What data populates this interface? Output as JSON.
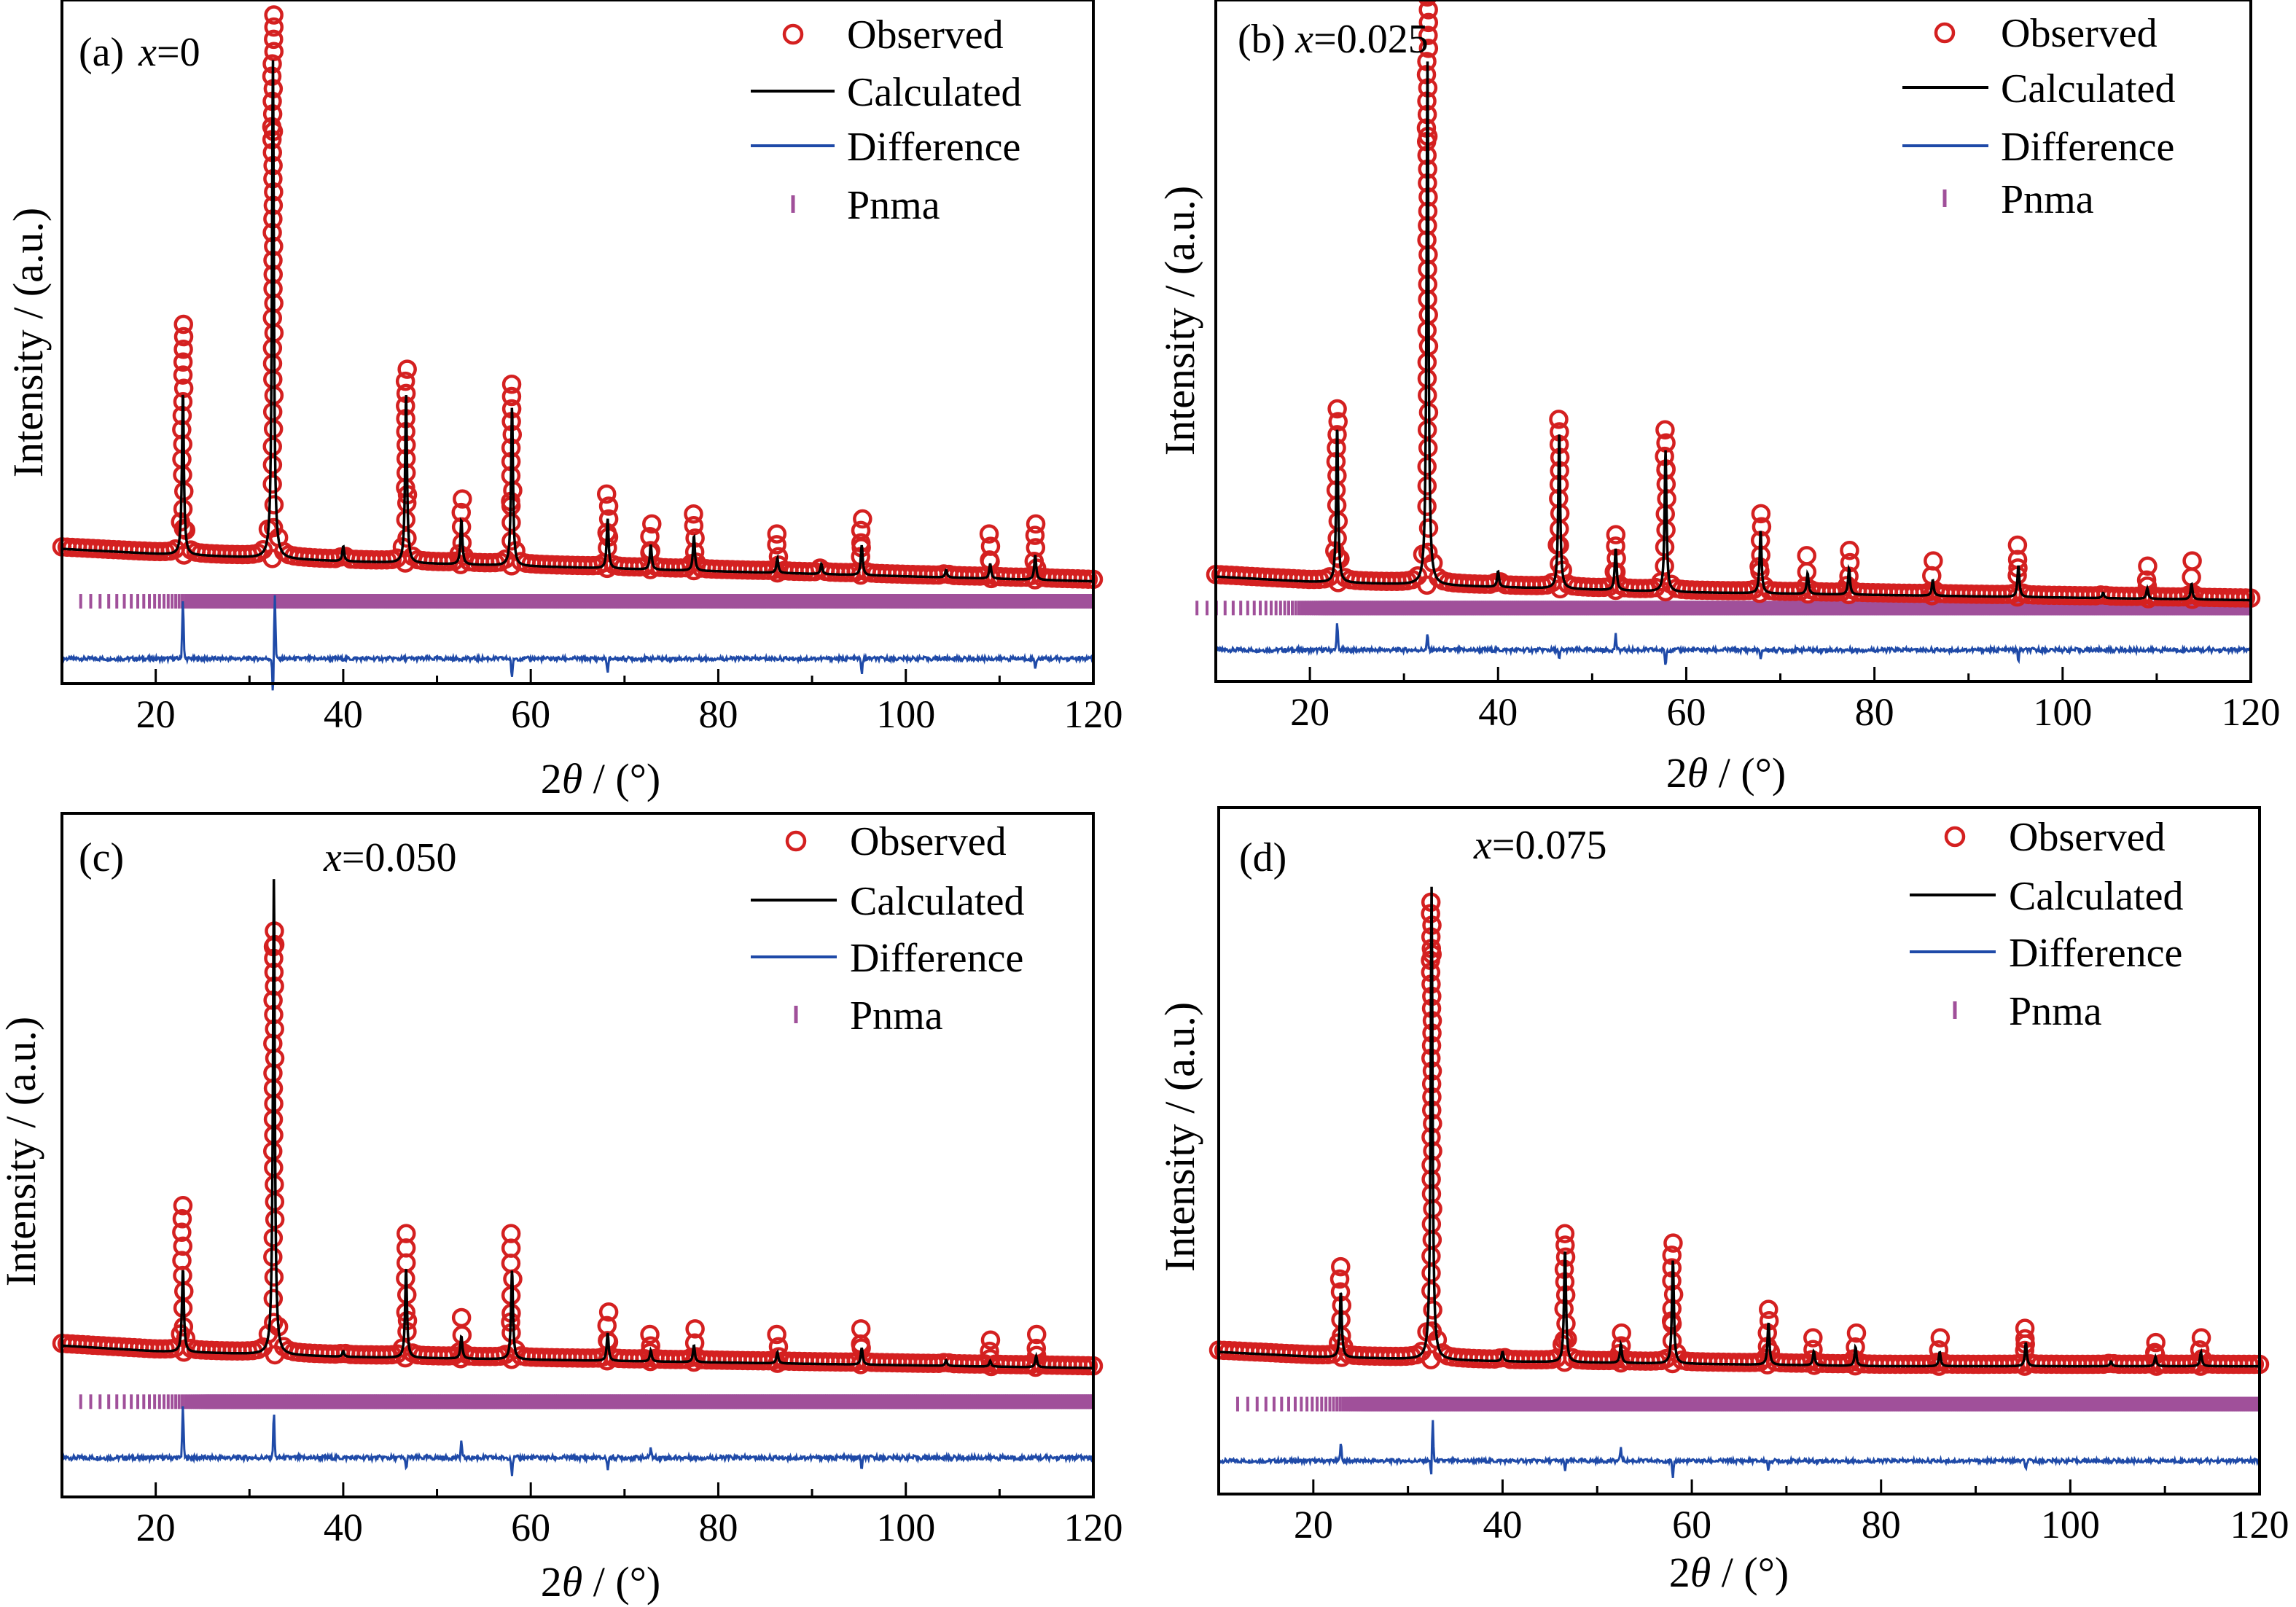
{
  "colors": {
    "observed": "#d42020",
    "calculated": "#000000",
    "difference": "#1f4aa8",
    "bragg": "#a0509a"
  },
  "legend": {
    "observed": "Observed",
    "calculated": "Calculated",
    "difference": "Difference",
    "bragg": "Pnma"
  },
  "axis": {
    "x_title_prefix": "2",
    "x_title_symbol": "θ",
    "x_title_suffix": " / (°)",
    "y_title": "Intensity / (a.u.)"
  },
  "chart_data": [
    {
      "type": "line",
      "panel": "(a)",
      "composition_var": "x",
      "composition_value": "=0",
      "xlim": [
        10,
        120
      ],
      "xticks": [
        20,
        40,
        60,
        80,
        100,
        120
      ],
      "y_normalized": true,
      "ylim": [
        -0.27,
        1.1
      ],
      "background": [
        [
          10,
          0.0
        ],
        [
          20,
          -0.01
        ],
        [
          40,
          -0.025
        ],
        [
          60,
          -0.035
        ],
        [
          80,
          -0.045
        ],
        [
          100,
          -0.055
        ],
        [
          120,
          -0.065
        ]
      ],
      "peaks": [
        [
          22.9,
          0.33
        ],
        [
          32.5,
          1.0
        ],
        [
          40.0,
          0.03
        ],
        [
          46.7,
          0.34
        ],
        [
          52.6,
          0.09
        ],
        [
          58.0,
          0.32
        ],
        [
          68.2,
          0.1
        ],
        [
          72.8,
          0.05
        ],
        [
          77.4,
          0.07
        ],
        [
          86.3,
          0.03
        ],
        [
          91.0,
          0.02
        ],
        [
          95.3,
          0.06
        ],
        [
          104.3,
          0.015
        ],
        [
          109.0,
          0.03
        ],
        [
          113.8,
          0.05
        ]
      ],
      "obs_top": [
        [
          22.9,
          0.45
        ],
        [
          32.5,
          1.07
        ],
        [
          46.7,
          0.36
        ],
        [
          52.6,
          0.1
        ],
        [
          58.0,
          0.33
        ],
        [
          68.2,
          0.11
        ],
        [
          72.8,
          0.05
        ],
        [
          77.4,
          0.07
        ],
        [
          86.3,
          0.03
        ],
        [
          95.3,
          0.06
        ],
        [
          109.0,
          0.03
        ],
        [
          113.8,
          0.05
        ]
      ],
      "difference_baseline": -0.22,
      "difference_spikes": [
        [
          22.9,
          0.12
        ],
        [
          32.5,
          -0.07
        ],
        [
          32.7,
          0.13
        ],
        [
          58.0,
          -0.04
        ],
        [
          68.2,
          -0.03
        ],
        [
          95.3,
          -0.03
        ],
        [
          113.8,
          -0.02
        ]
      ],
      "bragg_y": -0.105,
      "bragg_start": 12.0
    },
    {
      "type": "line",
      "panel": "(b)",
      "composition_var": "x",
      "composition_value": "=0.025",
      "xlim": [
        10,
        120
      ],
      "xticks": [
        20,
        40,
        60,
        80,
        100,
        120
      ],
      "y_normalized": true,
      "ylim": [
        -0.2,
        1.1
      ],
      "background": [
        [
          10,
          0.0
        ],
        [
          20,
          -0.01
        ],
        [
          40,
          -0.02
        ],
        [
          60,
          -0.03
        ],
        [
          80,
          -0.035
        ],
        [
          100,
          -0.04
        ],
        [
          120,
          -0.045
        ]
      ],
      "peaks": [
        [
          22.9,
          0.3
        ],
        [
          32.5,
          1.0
        ],
        [
          40.0,
          0.03
        ],
        [
          46.5,
          0.3
        ],
        [
          52.5,
          0.08
        ],
        [
          57.8,
          0.27
        ],
        [
          67.9,
          0.12
        ],
        [
          72.9,
          0.04
        ],
        [
          77.3,
          0.05
        ],
        [
          86.2,
          0.03
        ],
        [
          95.3,
          0.06
        ],
        [
          104.3,
          0.01
        ],
        [
          109.0,
          0.02
        ],
        [
          113.7,
          0.03
        ]
      ],
      "obs_top": [
        [
          22.9,
          0.32
        ],
        [
          32.5,
          1.13
        ],
        [
          46.5,
          0.3
        ],
        [
          52.5,
          0.08
        ],
        [
          57.8,
          0.28
        ],
        [
          67.9,
          0.12
        ],
        [
          72.9,
          0.04
        ],
        [
          77.3,
          0.05
        ],
        [
          86.2,
          0.03
        ],
        [
          95.3,
          0.06
        ],
        [
          109.0,
          0.02
        ],
        [
          113.7,
          0.03
        ]
      ],
      "difference_baseline": -0.14,
      "difference_spikes": [
        [
          22.9,
          0.05
        ],
        [
          32.5,
          0.03
        ],
        [
          46.5,
          -0.02
        ],
        [
          52.5,
          0.03
        ],
        [
          57.8,
          -0.03
        ],
        [
          67.9,
          -0.02
        ],
        [
          95.3,
          -0.02
        ]
      ],
      "bragg_y": -0.06,
      "bragg_start": 8.0
    },
    {
      "type": "line",
      "panel": "(c)",
      "composition_var": "x",
      "composition_value": "=0.050",
      "xlim": [
        10,
        120
      ],
      "xticks": [
        20,
        40,
        60,
        80,
        100,
        120
      ],
      "y_normalized": true,
      "ylim": [
        -0.27,
        0.95
      ],
      "background": [
        [
          10,
          0.0
        ],
        [
          20,
          -0.01
        ],
        [
          40,
          -0.02
        ],
        [
          60,
          -0.025
        ],
        [
          80,
          -0.03
        ],
        [
          100,
          -0.035
        ],
        [
          120,
          -0.04
        ]
      ],
      "peaks": [
        [
          22.9,
          0.15
        ],
        [
          32.6,
          0.85
        ],
        [
          40.0,
          0.01
        ],
        [
          46.7,
          0.16
        ],
        [
          52.6,
          0.04
        ],
        [
          58.0,
          0.16
        ],
        [
          68.2,
          0.05
        ],
        [
          72.8,
          0.02
        ],
        [
          77.4,
          0.03
        ],
        [
          86.3,
          0.02
        ],
        [
          95.3,
          0.03
        ],
        [
          104.3,
          0.01
        ],
        [
          109.0,
          0.01
        ],
        [
          113.9,
          0.02
        ]
      ],
      "obs_top": [
        [
          22.9,
          0.25
        ],
        [
          32.6,
          0.74
        ],
        [
          46.7,
          0.2
        ],
        [
          52.6,
          0.05
        ],
        [
          58.0,
          0.2
        ],
        [
          68.2,
          0.06
        ],
        [
          72.8,
          0.02
        ],
        [
          77.4,
          0.03
        ],
        [
          86.3,
          0.02
        ],
        [
          95.3,
          0.03
        ],
        [
          109.0,
          0.01
        ],
        [
          113.9,
          0.02
        ]
      ],
      "difference_baseline": -0.2,
      "difference_spikes": [
        [
          22.9,
          0.09
        ],
        [
          32.6,
          0.08
        ],
        [
          46.7,
          -0.02
        ],
        [
          52.6,
          0.03
        ],
        [
          58.0,
          -0.03
        ],
        [
          68.2,
          -0.02
        ],
        [
          72.8,
          0.02
        ],
        [
          95.3,
          -0.02
        ]
      ],
      "bragg_y": -0.1,
      "bragg_start": 12.0
    },
    {
      "type": "line",
      "panel": "(d)",
      "composition_var": "x",
      "composition_value": "=0.075",
      "xlim": [
        10,
        120
      ],
      "xticks": [
        20,
        40,
        60,
        80,
        100,
        120
      ],
      "y_normalized": true,
      "ylim": [
        -0.3,
        1.15
      ],
      "background": [
        [
          10,
          0.0
        ],
        [
          20,
          -0.01
        ],
        [
          40,
          -0.02
        ],
        [
          60,
          -0.025
        ],
        [
          80,
          -0.03
        ],
        [
          100,
          -0.03
        ],
        [
          120,
          -0.03
        ]
      ],
      "peaks": [
        [
          22.9,
          0.14
        ],
        [
          32.5,
          1.0
        ],
        [
          40.0,
          0.02
        ],
        [
          46.6,
          0.24
        ],
        [
          52.5,
          0.04
        ],
        [
          58.0,
          0.22
        ],
        [
          68.1,
          0.09
        ],
        [
          72.9,
          0.03
        ],
        [
          77.3,
          0.04
        ],
        [
          86.2,
          0.03
        ],
        [
          95.3,
          0.05
        ],
        [
          104.3,
          0.01
        ],
        [
          109.0,
          0.02
        ],
        [
          113.8,
          0.03
        ]
      ],
      "obs_top": [
        [
          22.9,
          0.18
        ],
        [
          32.5,
          0.95
        ],
        [
          46.6,
          0.25
        ],
        [
          52.5,
          0.04
        ],
        [
          58.0,
          0.23
        ],
        [
          68.1,
          0.09
        ],
        [
          72.9,
          0.03
        ],
        [
          77.3,
          0.04
        ],
        [
          86.2,
          0.03
        ],
        [
          95.3,
          0.05
        ],
        [
          109.0,
          0.02
        ],
        [
          113.8,
          0.03
        ]
      ],
      "difference_baseline": -0.23,
      "difference_spikes": [
        [
          22.9,
          0.04
        ],
        [
          32.5,
          -0.05
        ],
        [
          32.6,
          0.1
        ],
        [
          46.6,
          -0.02
        ],
        [
          52.5,
          0.03
        ],
        [
          58.0,
          -0.04
        ],
        [
          68.1,
          -0.02
        ],
        [
          95.3,
          -0.02
        ]
      ],
      "bragg_y": -0.11,
      "bragg_start": 12.0
    }
  ]
}
